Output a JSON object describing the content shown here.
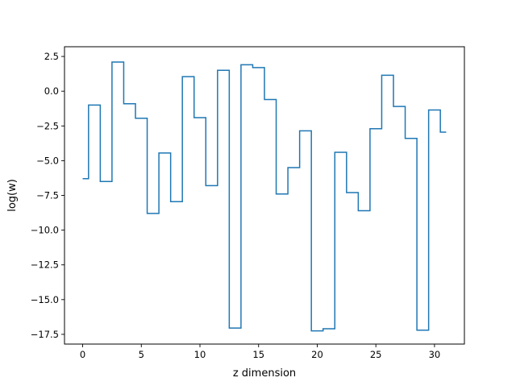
{
  "chart_data": {
    "type": "line",
    "drawstyle": "steps-mid",
    "title": "",
    "xlabel": "z dimension",
    "ylabel": "log(w)",
    "xlim": [
      -1.55,
      32.55
    ],
    "ylim": [
      -18.2,
      3.2
    ],
    "xticks": [
      0,
      5,
      10,
      15,
      20,
      25,
      30
    ],
    "xtick_labels": [
      "0",
      "5",
      "10",
      "15",
      "20",
      "25",
      "30"
    ],
    "yticks": [
      2.5,
      0.0,
      -2.5,
      -5.0,
      -7.5,
      -10.0,
      -12.5,
      -15.0,
      -17.5
    ],
    "ytick_labels": [
      "2.5",
      "0.0",
      "−2.5",
      "−5.0",
      "−7.5",
      "−10.0",
      "−12.5",
      "−15.0",
      "−17.5"
    ],
    "grid": false,
    "legend": false,
    "series": [
      {
        "color": "#1f77b4",
        "x": [
          0,
          1,
          2,
          3,
          4,
          5,
          6,
          7,
          8,
          9,
          10,
          11,
          12,
          13,
          14,
          15,
          16,
          17,
          18,
          19,
          20,
          21,
          22,
          23,
          24,
          25,
          26,
          27,
          28,
          29,
          30,
          31
        ],
        "y": [
          -6.3,
          -1.0,
          -6.5,
          2.1,
          -0.9,
          -1.95,
          -8.8,
          -4.45,
          -7.95,
          1.05,
          -1.9,
          -6.8,
          1.5,
          -17.05,
          1.9,
          1.7,
          -0.6,
          -7.4,
          -5.5,
          -2.85,
          -17.25,
          -17.1,
          -4.4,
          -7.3,
          -8.6,
          -2.7,
          1.15,
          -1.1,
          -3.4,
          -17.2,
          -1.35,
          -2.95
        ]
      }
    ]
  }
}
